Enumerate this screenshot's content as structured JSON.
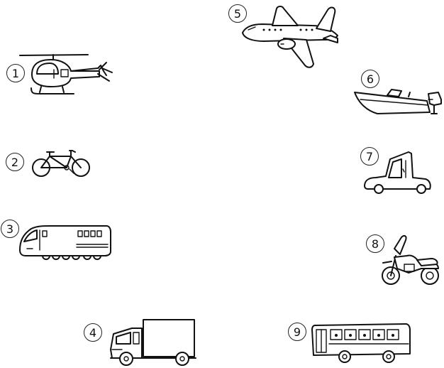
{
  "worksheet": {
    "items": [
      {
        "number": "1",
        "icon": "helicopter-icon"
      },
      {
        "number": "2",
        "icon": "bicycle-icon"
      },
      {
        "number": "3",
        "icon": "train-icon"
      },
      {
        "number": "4",
        "icon": "truck-icon"
      },
      {
        "number": "5",
        "icon": "airplane-icon"
      },
      {
        "number": "6",
        "icon": "motorboat-icon"
      },
      {
        "number": "7",
        "icon": "car-icon"
      },
      {
        "number": "8",
        "icon": "motorcycle-icon"
      },
      {
        "number": "9",
        "icon": "bus-icon"
      }
    ],
    "colors": {
      "ink": "#111111",
      "background": "#ffffff"
    }
  }
}
